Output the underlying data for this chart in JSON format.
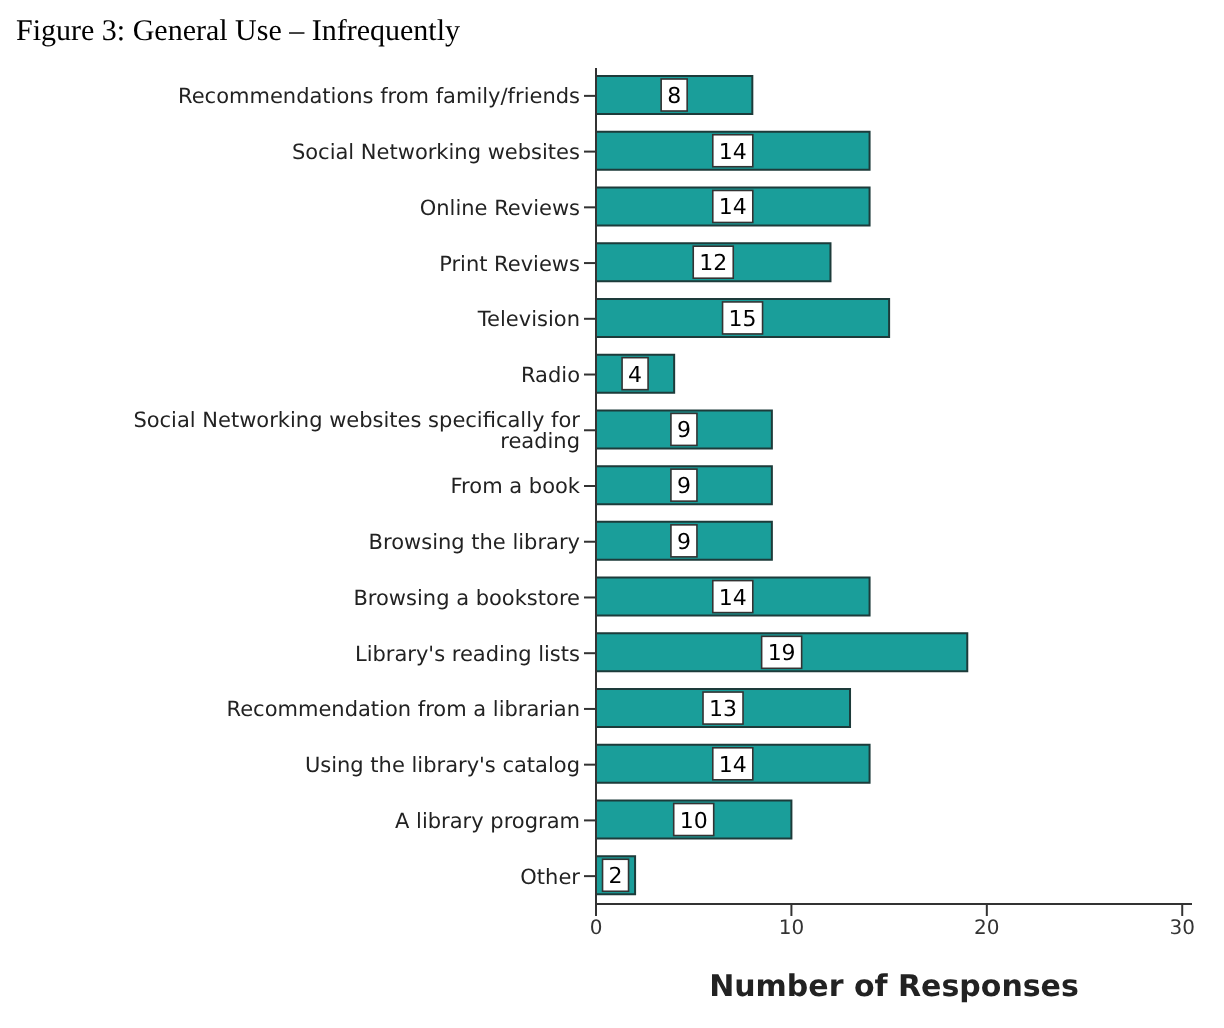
{
  "chart_data": {
    "type": "bar",
    "orientation": "horizontal",
    "title": "Figure 3: General Use – Infrequently",
    "xlabel": "Number of Responses",
    "categories": [
      "Recommendations from family/friends",
      "Social Networking websites",
      "Online Reviews",
      "Print Reviews",
      "Television",
      "Radio",
      "Social Networking websites specifically for reading",
      "From a book",
      "Browsing the library",
      "Browsing a bookstore",
      "Library's reading lists",
      "Recommendation from a librarian",
      "Using the library's catalog",
      "A library program",
      "Other"
    ],
    "values": [
      8,
      14,
      14,
      12,
      15,
      4,
      9,
      9,
      9,
      14,
      19,
      13,
      14,
      10,
      2
    ],
    "color": "#1a9e9a",
    "xlim": [
      0,
      30.5
    ],
    "xticks": [
      0,
      10,
      20,
      30
    ],
    "data_labels": true,
    "grid": false,
    "legend": false
  }
}
